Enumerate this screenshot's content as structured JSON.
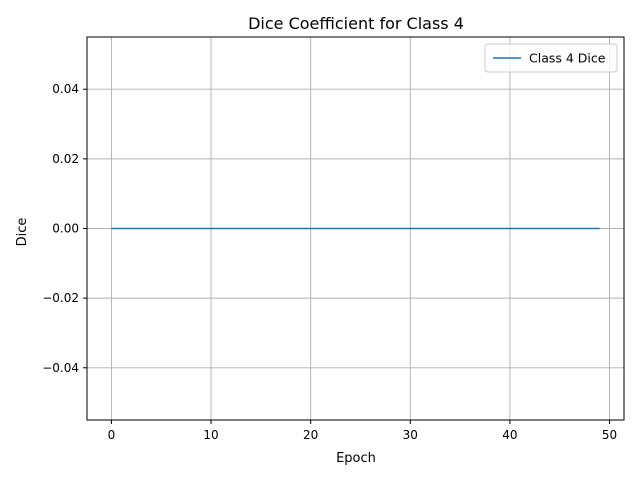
{
  "chart_data": {
    "type": "line",
    "title": "Dice Coefficient for Class 4",
    "xlabel": "Epoch",
    "ylabel": "Dice",
    "xlim": [
      -2.45,
      51.45
    ],
    "ylim": [
      -0.055,
      0.055
    ],
    "x_ticks": [
      0,
      10,
      20,
      30,
      40,
      50
    ],
    "x_tick_labels": [
      "0",
      "10",
      "20",
      "30",
      "40",
      "50"
    ],
    "y_ticks": [
      -0.04,
      -0.02,
      0.0,
      0.02,
      0.04
    ],
    "y_tick_labels": [
      "−0.04",
      "−0.02",
      "0.00",
      "0.02",
      "0.04"
    ],
    "grid": true,
    "legend": {
      "position": "top-right"
    },
    "series": [
      {
        "name": "Class 4 Dice",
        "color": "#1f77b4",
        "x": [
          0,
          49
        ],
        "y": [
          0.0,
          0.0
        ]
      }
    ]
  }
}
